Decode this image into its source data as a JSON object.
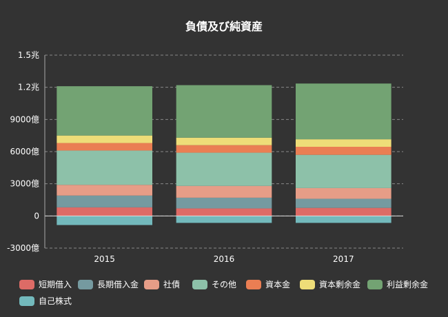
{
  "chart_data": {
    "type": "bar",
    "stacked": true,
    "title": "負債及び純資産",
    "categories": [
      "2015",
      "2016",
      "2017"
    ],
    "ylim": [
      -3000,
      15000
    ],
    "yticks": [
      {
        "value": -3000,
        "label": "-3000億"
      },
      {
        "value": 0,
        "label": "0"
      },
      {
        "value": 3000,
        "label": "3000億"
      },
      {
        "value": 6000,
        "label": "6000億"
      },
      {
        "value": 9000,
        "label": "9000億"
      },
      {
        "value": 12000,
        "label": "1.2兆"
      },
      {
        "value": 15000,
        "label": "1.5兆"
      }
    ],
    "grid": true,
    "legend_position": "bottom",
    "series": [
      {
        "name": "短期借入",
        "color": "#dd6b66",
        "values": [
          800,
          700,
          750
        ]
      },
      {
        "name": "長期借入金",
        "color": "#759aa0",
        "values": [
          1100,
          1000,
          850
        ]
      },
      {
        "name": "社債",
        "color": "#e69d87",
        "values": [
          1000,
          1100,
          1000
        ]
      },
      {
        "name": "その他",
        "color": "#8dc1a9",
        "values": [
          3200,
          3100,
          3100
        ]
      },
      {
        "name": "資本金",
        "color": "#ea7e53",
        "values": [
          700,
          700,
          750
        ]
      },
      {
        "name": "資本剰余金",
        "color": "#eedd78",
        "values": [
          700,
          700,
          700
        ]
      },
      {
        "name": "利益剰余金",
        "color": "#73a373",
        "values": [
          4600,
          4900,
          5200
        ]
      },
      {
        "name": "自己株式",
        "color": "#73b9bc",
        "values": [
          -850,
          -650,
          -650
        ]
      }
    ]
  }
}
